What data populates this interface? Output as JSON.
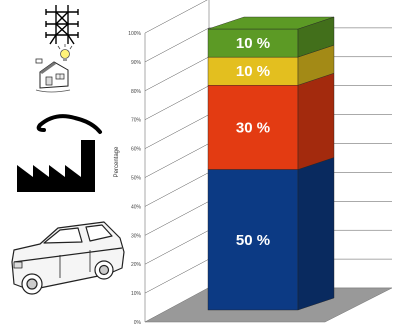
{
  "chart_data": {
    "type": "bar",
    "stacked": true,
    "percent_axis": true,
    "title": "",
    "xlabel": "",
    "ylabel": "Percentage",
    "ylim": [
      0,
      100
    ],
    "y_ticks": [
      "100%",
      "90%",
      "80%",
      "70%",
      "60%",
      "50%",
      "40%",
      "30%",
      "20%",
      "10%",
      "0%"
    ],
    "grid": true,
    "categories": [
      ""
    ],
    "series": [
      {
        "values": [
          50
        ],
        "label": "50 %",
        "color": "#0c3a84"
      },
      {
        "values": [
          30
        ],
        "label": "30 %",
        "color": "#e33b12"
      },
      {
        "values": [
          10
        ],
        "label": "10 %",
        "color": "#e3bf1f"
      },
      {
        "values": [
          10
        ],
        "label": "10 %",
        "color": "#5c9a25"
      }
    ]
  },
  "icons": [
    "power-pylon-icon",
    "house-with-lightbulb-icon",
    "factory-icon",
    "car-icon"
  ]
}
